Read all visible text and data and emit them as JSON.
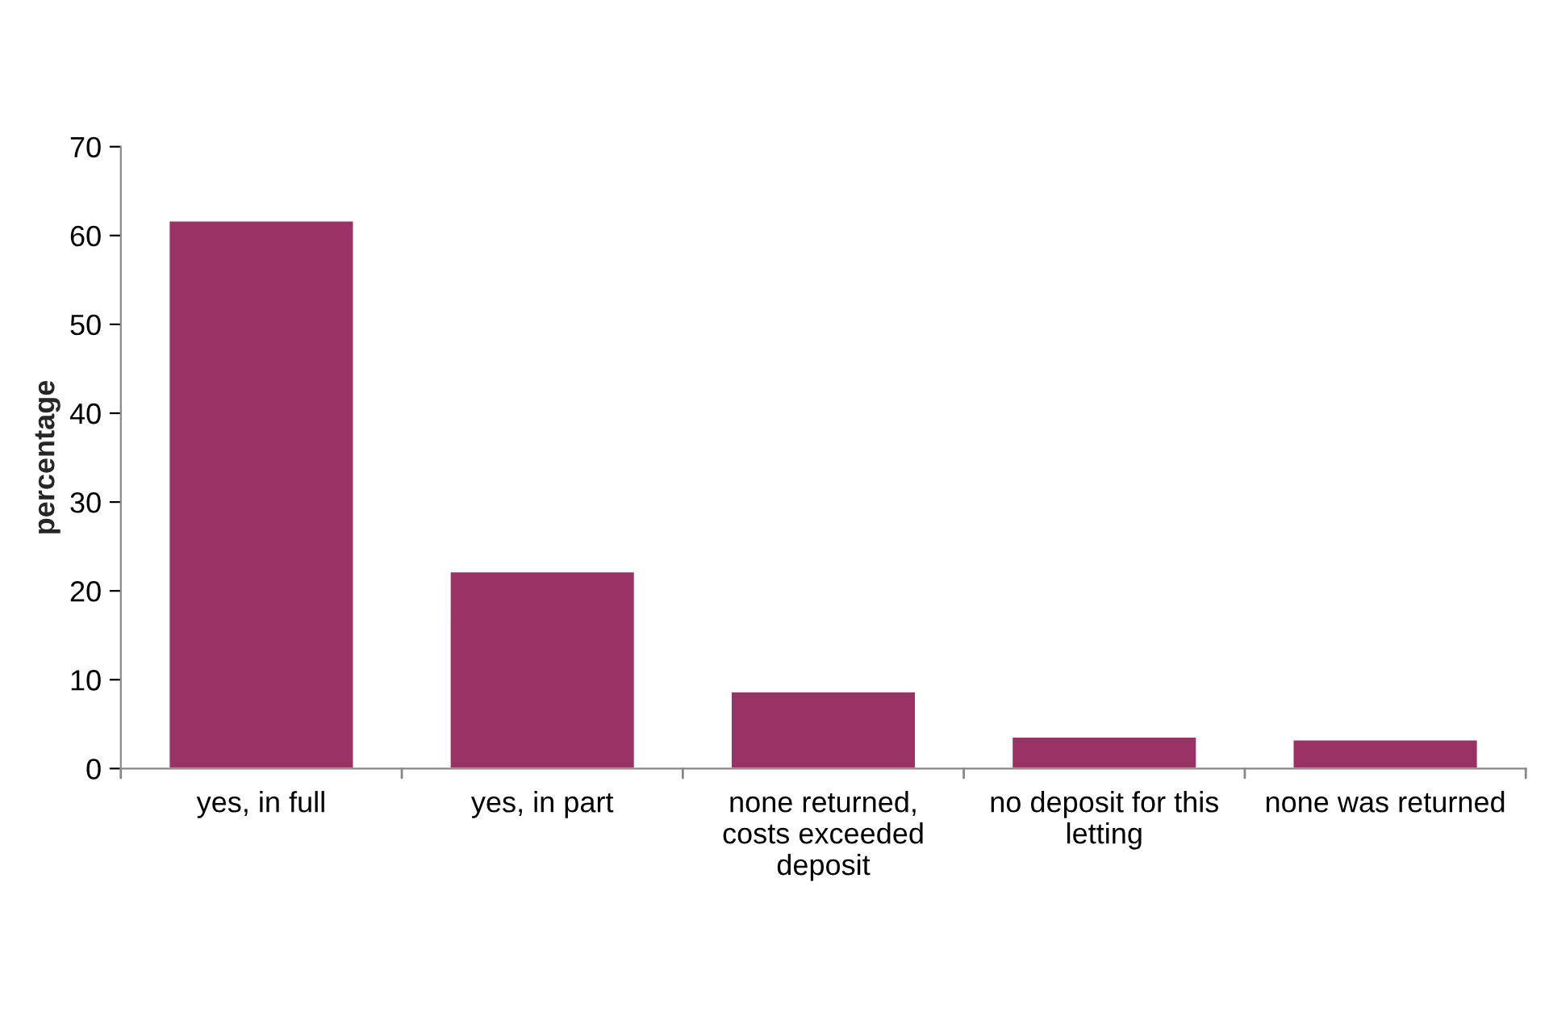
{
  "chart_data": {
    "type": "bar",
    "ylabel": "percentage",
    "categories": [
      "yes, in full",
      "yes, in part",
      "none returned,\ncosts exceeded\ndeposit",
      "no deposit for this\nletting",
      "none was returned"
    ],
    "values": [
      61.7,
      22.2,
      8.7,
      3.6,
      3.3
    ],
    "color": "#993366",
    "ylim": [
      0,
      70
    ],
    "yticks": [
      0,
      10,
      20,
      30,
      40,
      50,
      60,
      70
    ],
    "grid": false,
    "legend": false
  }
}
